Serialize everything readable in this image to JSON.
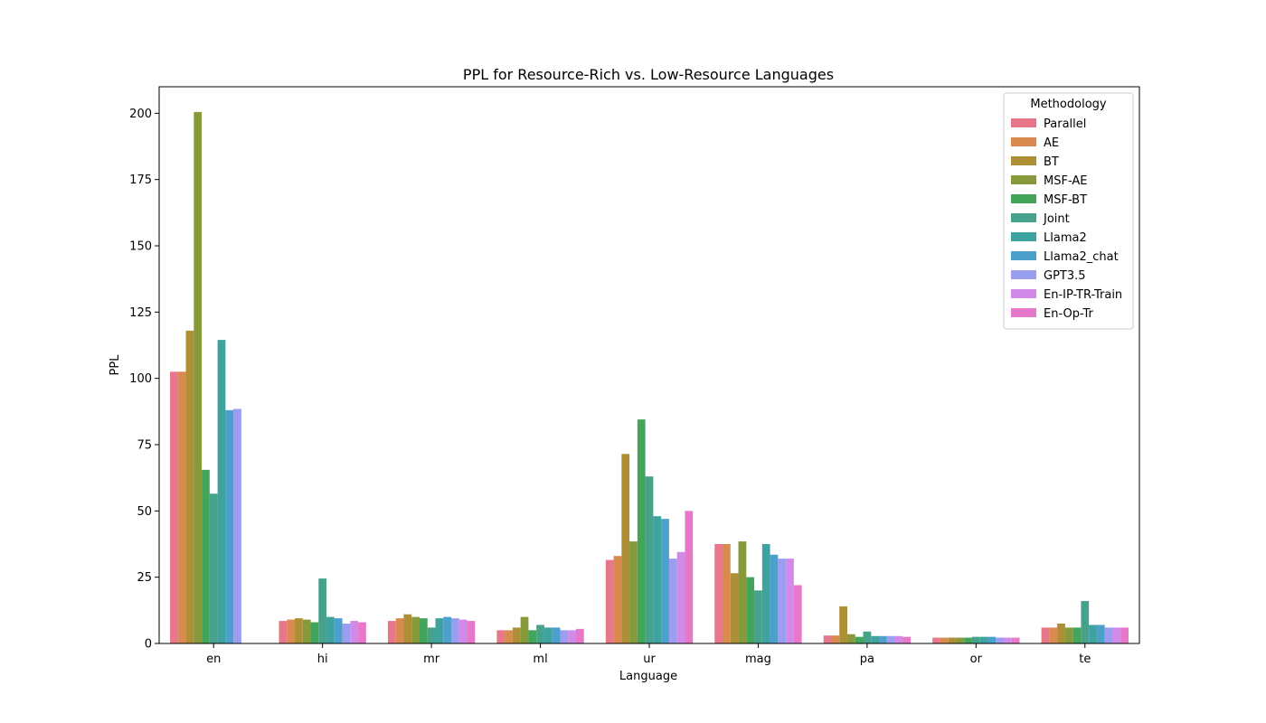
{
  "chart_data": {
    "type": "bar",
    "title": "PPL for Resource-Rich vs. Low-Resource Languages",
    "xlabel": "Language",
    "ylabel": "PPL",
    "ylim": [
      0,
      210
    ],
    "yticks": [
      0,
      25,
      50,
      75,
      100,
      125,
      150,
      175,
      200
    ],
    "categories": [
      "en",
      "hi",
      "mr",
      "ml",
      "ur",
      "mag",
      "pa",
      "or",
      "te"
    ],
    "legend": {
      "title": "Methodology",
      "position": "top-right"
    },
    "series": [
      {
        "name": "Parallel",
        "color": "#e8778a",
        "values": [
          102.5,
          8.5,
          8.5,
          5.0,
          31.5,
          37.5,
          3.0,
          2.2,
          6.0
        ]
      },
      {
        "name": "AE",
        "color": "#d98a4f",
        "values": [
          102.5,
          9.0,
          9.5,
          5.0,
          33.0,
          37.5,
          3.0,
          2.2,
          6.0
        ]
      },
      {
        "name": "BT",
        "color": "#ad8f35",
        "values": [
          118.0,
          9.5,
          11.0,
          6.0,
          71.5,
          26.5,
          14.0,
          2.2,
          7.5
        ]
      },
      {
        "name": "MSF-AE",
        "color": "#869a3c",
        "values": [
          200.5,
          9.0,
          10.0,
          10.0,
          38.5,
          38.5,
          3.5,
          2.2,
          6.0
        ]
      },
      {
        "name": "MSF-BT",
        "color": "#42a55a",
        "values": [
          65.5,
          8.0,
          9.5,
          5.0,
          84.5,
          25.0,
          2.5,
          2.2,
          6.0
        ]
      },
      {
        "name": "Joint",
        "color": "#46a28a",
        "values": [
          56.5,
          24.5,
          6.0,
          7.0,
          63.0,
          20.0,
          4.5,
          2.5,
          16.0
        ]
      },
      {
        "name": "Llama2",
        "color": "#3ea2a0",
        "values": [
          114.5,
          10.0,
          9.5,
          6.0,
          48.0,
          37.5,
          2.8,
          2.5,
          7.0
        ]
      },
      {
        "name": "Llama2_chat",
        "color": "#4ba0cc",
        "values": [
          88.0,
          9.5,
          10.0,
          6.0,
          47.0,
          33.5,
          2.8,
          2.5,
          7.0
        ]
      },
      {
        "name": "GPT3.5",
        "color": "#9b9df0",
        "values": [
          88.5,
          7.5,
          9.5,
          5.0,
          32.0,
          32.0,
          2.8,
          2.2,
          6.0
        ]
      },
      {
        "name": "En-IP-TR-Train",
        "color": "#d28ae8",
        "values": [
          null,
          8.5,
          9.0,
          5.0,
          34.5,
          32.0,
          2.8,
          2.2,
          6.0
        ]
      },
      {
        "name": "En-Op-Tr",
        "color": "#e777c8",
        "values": [
          null,
          8.0,
          8.5,
          5.5,
          50.0,
          22.0,
          2.5,
          2.2,
          6.0
        ]
      }
    ]
  }
}
